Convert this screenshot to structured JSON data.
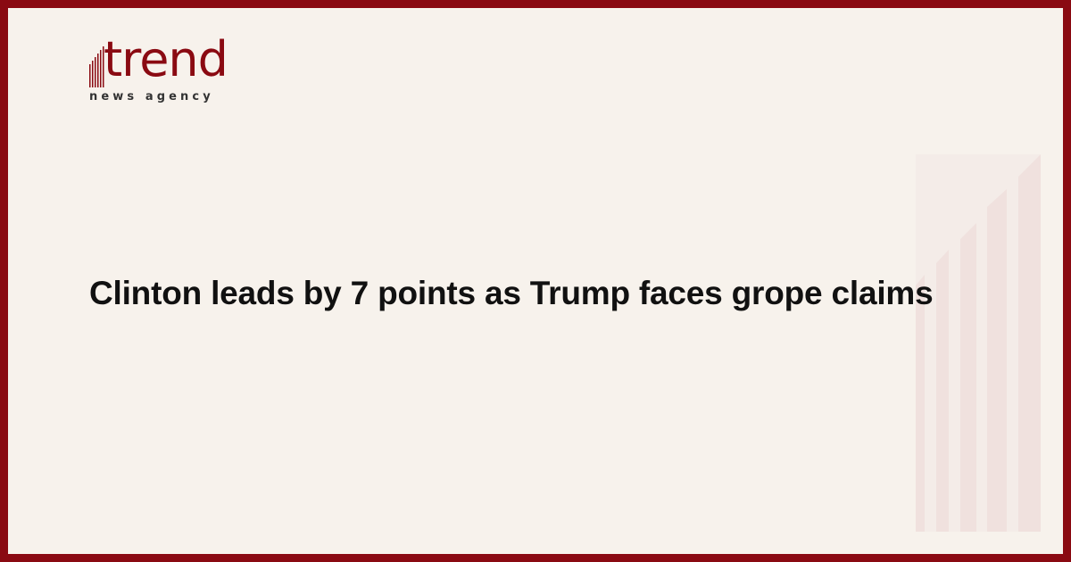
{
  "logo": {
    "word": "trend",
    "tagline": "news agency"
  },
  "headline": "Clinton leads by 7 points as Trump faces grope claims",
  "colors": {
    "brand": "#8a0a12",
    "background": "#f7f2ec",
    "bars": "#f0e1de"
  }
}
